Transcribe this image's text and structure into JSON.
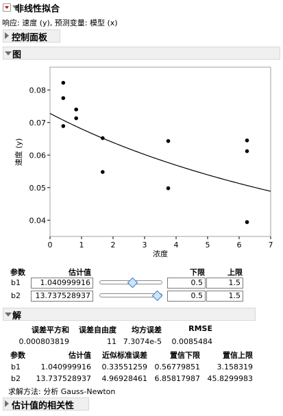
{
  "report": {
    "title": "非线性拟合",
    "response_line": "响应: 速度 (y), 预测变量: 模型 (x)",
    "control_panel_title": "控制面板",
    "plot_title": "图",
    "solution_title": "解",
    "correlation_title": "估计值的相关性"
  },
  "chart_data": {
    "type": "scatter",
    "xlabel": "浓度",
    "ylabel": "速度 (y)",
    "xlim": [
      0,
      7
    ],
    "ylim": [
      0.035,
      0.087
    ],
    "x_ticks": [
      "0",
      "1",
      "2",
      "3",
      "4",
      "5",
      "6",
      "7"
    ],
    "y_ticks": [
      "0.04",
      "0.05",
      "0.06",
      "0.07",
      "0.08"
    ],
    "points": [
      {
        "x": 0.42,
        "y": 0.0822
      },
      {
        "x": 0.42,
        "y": 0.0775
      },
      {
        "x": 0.42,
        "y": 0.0689
      },
      {
        "x": 0.83,
        "y": 0.074
      },
      {
        "x": 0.83,
        "y": 0.0713
      },
      {
        "x": 1.67,
        "y": 0.0652
      },
      {
        "x": 1.67,
        "y": 0.0548
      },
      {
        "x": 3.75,
        "y": 0.0643
      },
      {
        "x": 3.75,
        "y": 0.0498
      },
      {
        "x": 6.25,
        "y": 0.0645
      },
      {
        "x": 6.25,
        "y": 0.0612
      },
      {
        "x": 6.25,
        "y": 0.0394
      }
    ],
    "fit_curve": {
      "model": "b1/(b1*b2 + x)",
      "b1": 1.040999916,
      "b2": 13.737528937
    },
    "grid": false,
    "legend": "none"
  },
  "control": {
    "headers": {
      "param": "参数",
      "estimate": "估计值",
      "lower": "下限",
      "upper": "上限"
    },
    "rows": [
      {
        "name": "b1",
        "estimate": "1.040999916",
        "lower": "0.5",
        "upper": "1.5",
        "slider_fraction": 0.54
      },
      {
        "name": "b2",
        "estimate": "13.737528937",
        "lower": "0.5",
        "upper": "1.5",
        "slider_fraction": 0.98
      }
    ]
  },
  "solution": {
    "summary_headers": {
      "sse": "误差平方和",
      "dfe": "误差自由度",
      "mse": "均方误差",
      "rmse": "RMSE"
    },
    "summary_values": {
      "sse": "0.000803819",
      "dfe": "11",
      "mse": "7.3074e-5",
      "rmse": "0.0085484"
    },
    "param_headers": {
      "param": "参数",
      "estimate": "估计值",
      "se": "近似标准误差",
      "lower": "置信下限",
      "upper": "置信上限"
    },
    "params": [
      {
        "name": "b1",
        "estimate": "1.040999916",
        "se": "0.33551259",
        "lower": "0.56779851",
        "upper": "3.158319"
      },
      {
        "name": "b2",
        "estimate": "13.737528937",
        "se": "4.96928461",
        "lower": "6.85817987",
        "upper": "45.8299983"
      }
    ],
    "method": "求解方法: 分析 Gauss-Newton"
  }
}
